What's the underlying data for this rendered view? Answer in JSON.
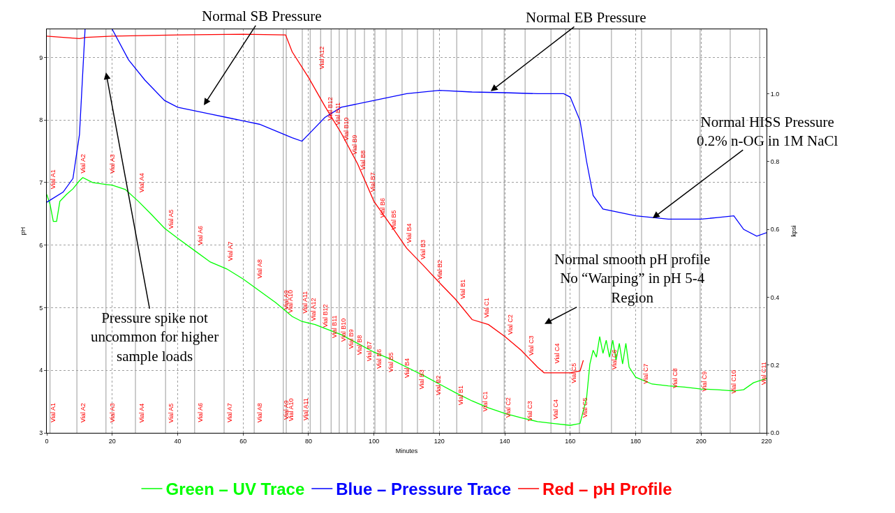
{
  "chart_data": {
    "type": "line",
    "xlabel": "Minutes",
    "ylabel": "pH",
    "y2label": "kpsi",
    "xlim": [
      0,
      220
    ],
    "xticks": [
      0,
      20,
      40,
      60,
      80,
      100,
      120,
      140,
      160,
      180,
      200,
      220
    ],
    "ylim": [
      3,
      9.45
    ],
    "yticks": [
      3,
      4,
      5,
      6,
      7,
      8,
      9
    ],
    "y2lim": [
      0,
      1.19
    ],
    "y2ticks": [
      {
        "value": 0,
        "label": "0.0"
      },
      {
        "value": 0.2,
        "label": "0.2"
      },
      {
        "value": 0.4,
        "label": "0.4"
      },
      {
        "value": 0.6,
        "label": "0.6"
      },
      {
        "value": 0.8,
        "label": "0.8"
      },
      {
        "value": 1.0,
        "label": "1.0"
      }
    ],
    "grid": true,
    "legend": "bottom",
    "marker": "none",
    "line_style": "solid",
    "series": [
      {
        "name": "Green – UV Trace",
        "color": "#00ff00",
        "x": [
          0,
          1,
          2,
          3,
          4,
          6,
          8,
          10,
          11,
          14,
          18,
          20,
          24,
          28,
          32,
          36,
          40,
          45,
          50,
          55,
          60,
          65,
          70,
          75,
          78,
          82,
          85,
          90,
          95,
          100,
          105,
          110,
          115,
          120,
          125,
          130,
          135,
          140,
          145,
          150,
          155,
          160,
          163,
          165,
          166,
          167,
          168,
          169,
          170,
          171,
          172,
          173,
          174,
          175,
          176,
          177,
          178,
          180,
          185,
          190,
          195,
          200,
          205,
          210,
          213,
          216,
          220
        ],
        "values": [
          6.81,
          6.65,
          6.38,
          6.38,
          6.7,
          6.81,
          6.9,
          7.03,
          7.08,
          7.0,
          6.97,
          6.96,
          6.89,
          6.7,
          6.49,
          6.27,
          6.11,
          5.92,
          5.73,
          5.62,
          5.46,
          5.27,
          5.08,
          4.86,
          4.78,
          4.73,
          4.67,
          4.57,
          4.43,
          4.29,
          4.18,
          4.05,
          3.92,
          3.78,
          3.64,
          3.51,
          3.4,
          3.31,
          3.24,
          3.18,
          3.15,
          3.12,
          3.15,
          3.56,
          4.1,
          4.32,
          4.21,
          4.54,
          4.27,
          4.48,
          4.21,
          4.48,
          4.16,
          4.43,
          4.1,
          4.43,
          4.05,
          3.89,
          3.78,
          3.75,
          3.73,
          3.7,
          3.69,
          3.67,
          3.69,
          3.8,
          3.87
        ]
      },
      {
        "name": "Blue – Pressure Trace",
        "color": "#0000ff",
        "axis": "y2",
        "x": [
          0,
          5,
          8,
          10,
          11.7,
          16,
          20,
          25,
          30,
          36,
          40,
          50,
          55,
          60,
          65,
          70,
          75,
          78,
          80,
          85,
          90,
          100,
          110,
          120,
          130,
          140,
          150,
          158,
          160,
          163,
          165,
          167,
          170,
          180,
          190,
          200,
          205,
          210,
          213,
          217,
          220
        ],
        "values": [
          0.68,
          0.71,
          0.75,
          0.88,
          1.19,
          null,
          1.19,
          1.1,
          1.04,
          0.98,
          0.96,
          0.94,
          0.93,
          0.92,
          0.91,
          0.89,
          0.87,
          0.86,
          0.88,
          0.93,
          0.96,
          0.98,
          1.0,
          1.01,
          1.005,
          1.003,
          1.0,
          1.0,
          0.99,
          0.92,
          0.8,
          0.7,
          0.66,
          0.64,
          0.63,
          0.63,
          0.635,
          0.64,
          0.6,
          0.58,
          0.59
        ]
      },
      {
        "name": "Red – pH Profile",
        "color": "#ff0000",
        "x": [
          0,
          10,
          12,
          20,
          40,
          60,
          73,
          75,
          80,
          85,
          90,
          95,
          100,
          105,
          110,
          115,
          120,
          125,
          130,
          135,
          140,
          145,
          150,
          152,
          160,
          163,
          164
        ],
        "values": [
          9.34,
          9.3,
          9.32,
          9.34,
          9.36,
          9.37,
          9.36,
          9.09,
          8.68,
          8.22,
          7.79,
          7.3,
          6.7,
          6.33,
          5.95,
          5.68,
          5.4,
          5.13,
          4.81,
          4.73,
          4.54,
          4.32,
          4.05,
          3.96,
          3.96,
          3.99,
          4.16
        ]
      }
    ],
    "ref_lines": [
      {
        "axis": "x",
        "value": 1,
        "color": "#808080"
      },
      {
        "axis": "x",
        "value": 9.2,
        "color": "#808080"
      },
      {
        "axis": "x",
        "value": 18.1,
        "color": "#808080"
      },
      {
        "axis": "x",
        "value": 27.1,
        "color": "#808080"
      },
      {
        "axis": "x",
        "value": 36.3,
        "color": "#808080"
      },
      {
        "axis": "x",
        "value": 45.2,
        "color": "#808080"
      },
      {
        "axis": "x",
        "value": 54.2,
        "color": "#808080"
      },
      {
        "axis": "x",
        "value": 63.4,
        "color": "#808080"
      },
      {
        "axis": "x",
        "value": 72.3,
        "color": "#808080"
      },
      {
        "axis": "x",
        "value": 73.2,
        "color": "#808080"
      },
      {
        "axis": "x",
        "value": 78.1,
        "color": "#808080"
      },
      {
        "axis": "x",
        "value": 80.5,
        "color": "#808080"
      },
      {
        "axis": "x",
        "value": 83.7,
        "color": "#808080"
      },
      {
        "axis": "x",
        "value": 86.9,
        "color": "#808080"
      },
      {
        "axis": "x",
        "value": 89.4,
        "color": "#808080"
      },
      {
        "axis": "x",
        "value": 91.8,
        "color": "#808080"
      },
      {
        "axis": "x",
        "value": 94.3,
        "color": "#808080"
      },
      {
        "axis": "x",
        "value": 97.1,
        "color": "#808080"
      },
      {
        "axis": "x",
        "value": 100.3,
        "color": "#808080"
      },
      {
        "axis": "x",
        "value": 103.7,
        "color": "#808080"
      },
      {
        "axis": "x",
        "value": 108.6,
        "color": "#808080"
      },
      {
        "axis": "x",
        "value": 113.3,
        "color": "#808080"
      },
      {
        "axis": "x",
        "value": 118.2,
        "color": "#808080"
      },
      {
        "axis": "x",
        "value": 125.3,
        "color": "#808080"
      },
      {
        "axis": "x",
        "value": 133.0,
        "color": "#808080"
      },
      {
        "axis": "x",
        "value": 139.8,
        "color": "#808080"
      },
      {
        "axis": "x",
        "value": 146.2,
        "color": "#808080"
      },
      {
        "axis": "x",
        "value": 154.1,
        "color": "#808080"
      },
      {
        "axis": "x",
        "value": 158.6,
        "color": "#808080"
      },
      {
        "axis": "x",
        "value": 162.8,
        "color": "#808080"
      },
      {
        "axis": "x",
        "value": 172.6,
        "color": "#808080"
      },
      {
        "axis": "x",
        "value": 181.8,
        "color": "#808080"
      },
      {
        "axis": "x",
        "value": 190.8,
        "color": "#808080"
      },
      {
        "axis": "x",
        "value": 199.7,
        "color": "#808080"
      },
      {
        "axis": "x",
        "value": 208.9,
        "color": "#808080"
      },
      {
        "axis": "x",
        "value": 217.9,
        "color": "#808080"
      }
    ],
    "annotations": [
      "Normal SB Pressure",
      {
        "text": "Normal EB Pressure",
        "x": 135.7,
        "y": 8.46
      },
      {
        "text": "Normal HISS Pressure\n0.2% n-OG in 1M NaCl",
        "x": 185.2,
        "y": 6.43
      },
      {
        "text": "Pressure spike not\nuncommon for higher\nsample loads",
        "x": 18.1,
        "y": 8.76
      },
      "Normal smooth pH profile\nNo “Warping” in pH 5-4\nRegion",
      {
        "text": "Vial A1",
        "x": 1,
        "y": 7.05
      },
      {
        "text": "Vial A2",
        "x": 10,
        "y": 7.3
      },
      {
        "text": "Vial A3",
        "x": 19,
        "y": 7.3
      },
      {
        "text": "Vial A4",
        "x": 28,
        "y": 7.0
      },
      {
        "text": "Vial A5",
        "x": 37,
        "y": 6.42
      },
      {
        "text": "Vial A6",
        "x": 46,
        "y": 6.15
      },
      {
        "text": "Vial A7",
        "x": 55,
        "y": 5.9
      },
      {
        "text": "Vial A8",
        "x": 64,
        "y": 5.62
      },
      {
        "text": "Vial A9",
        "x": 72,
        "y": 5.13
      },
      {
        "text": "Vial A10",
        "x": 73.5,
        "y": 5.1
      },
      {
        "text": "Vial A11",
        "x": 78,
        "y": 5.08
      },
      {
        "text": "Vial A12",
        "x": 80.5,
        "y": 4.97
      },
      {
        "text": "Vial B12",
        "x": 84,
        "y": 4.87
      },
      {
        "text": "Vial B11",
        "x": 87,
        "y": 4.7
      },
      {
        "text": "Vial B10",
        "x": 89.5,
        "y": 4.64
      },
      {
        "text": "Vial B9",
        "x": 92,
        "y": 4.5
      },
      {
        "text": "Vial B8",
        "x": 94.5,
        "y": 4.4
      },
      {
        "text": "Vial B7",
        "x": 97.5,
        "y": 4.3
      },
      {
        "text": "Vial B6",
        "x": 100.5,
        "y": 4.18
      },
      {
        "text": "Vial B5",
        "x": 104,
        "y": 4.13
      },
      {
        "text": "Vial B4",
        "x": 109,
        "y": 4.03
      },
      {
        "text": "Vial B3",
        "x": 113.5,
        "y": 3.85
      },
      {
        "text": "Vial B2",
        "x": 118.5,
        "y": 3.76
      },
      {
        "text": "Vial B1",
        "x": 125.5,
        "y": 3.6
      },
      {
        "text": "Vial C1",
        "x": 133,
        "y": 3.5
      },
      {
        "text": "Vial C2",
        "x": 140,
        "y": 3.4
      },
      {
        "text": "Vial C3",
        "x": 146.5,
        "y": 3.35
      },
      {
        "text": "Vial C4",
        "x": 154.5,
        "y": 3.37
      },
      {
        "text": "Vial C5",
        "x": 163.5,
        "y": 3.4
      },
      {
        "text": "Vial C6",
        "x": 172.5,
        "y": 4.17
      },
      {
        "text": "Vial C7",
        "x": 182,
        "y": 3.95
      },
      {
        "text": "Vial C8",
        "x": 191,
        "y": 3.87
      },
      {
        "text": "Vial C9",
        "x": 200,
        "y": 3.82
      },
      {
        "text": "Vial C10",
        "x": 209,
        "y": 3.82
      },
      {
        "text": "Vial C11",
        "x": 218,
        "y": 3.95
      },
      {
        "text": "Vial A12",
        "x": 83,
        "y": 9.0
      },
      {
        "text": "Vial B12",
        "x": 85.5,
        "y": 8.18
      },
      {
        "text": "Vial B11",
        "x": 88,
        "y": 8.1
      },
      {
        "text": "Vial B10",
        "x": 90.5,
        "y": 7.85
      },
      {
        "text": "Vial B9",
        "x": 93,
        "y": 7.6
      },
      {
        "text": "Vial B8",
        "x": 95.5,
        "y": 7.35
      },
      {
        "text": "Vial B7",
        "x": 98.5,
        "y": 7.0
      },
      {
        "text": "Vial B6",
        "x": 101.5,
        "y": 6.59
      },
      {
        "text": "Vial B5",
        "x": 105,
        "y": 6.4
      },
      {
        "text": "Vial B4",
        "x": 109.5,
        "y": 6.19
      },
      {
        "text": "Vial B3",
        "x": 114,
        "y": 5.93
      },
      {
        "text": "Vial B2",
        "x": 119,
        "y": 5.6
      },
      {
        "text": "Vial B1",
        "x": 126,
        "y": 5.3
      },
      {
        "text": "Vial C1",
        "x": 133.5,
        "y": 5.0
      },
      {
        "text": "Vial C2",
        "x": 140.5,
        "y": 4.73
      },
      {
        "text": "Vial C3",
        "x": 147,
        "y": 4.4
      },
      {
        "text": "Vial C4",
        "x": 155,
        "y": 4.27
      },
      {
        "text": "Vial C5",
        "x": 160,
        "y": 3.96
      },
      {
        "text": "Vial A1",
        "x": 1,
        "y": 3.32
      },
      {
        "text": "Vial A2",
        "x": 10,
        "y": 3.32
      },
      {
        "text": "Vial A3",
        "x": 19,
        "y": 3.32
      },
      {
        "text": "Vial A4",
        "x": 28,
        "y": 3.32
      },
      {
        "text": "Vial A5",
        "x": 37,
        "y": 3.32
      },
      {
        "text": "Vial A6",
        "x": 46,
        "y": 3.32
      },
      {
        "text": "Vial A7",
        "x": 55,
        "y": 3.32
      },
      {
        "text": "Vial A8",
        "x": 64,
        "y": 3.32
      },
      {
        "text": "Vial A9",
        "x": 72,
        "y": 3.37
      },
      {
        "text": "Vial A10",
        "x": 73.5,
        "y": 3.37
      },
      {
        "text": "Vial A11",
        "x": 78,
        "y": 3.37
      }
    ]
  }
}
